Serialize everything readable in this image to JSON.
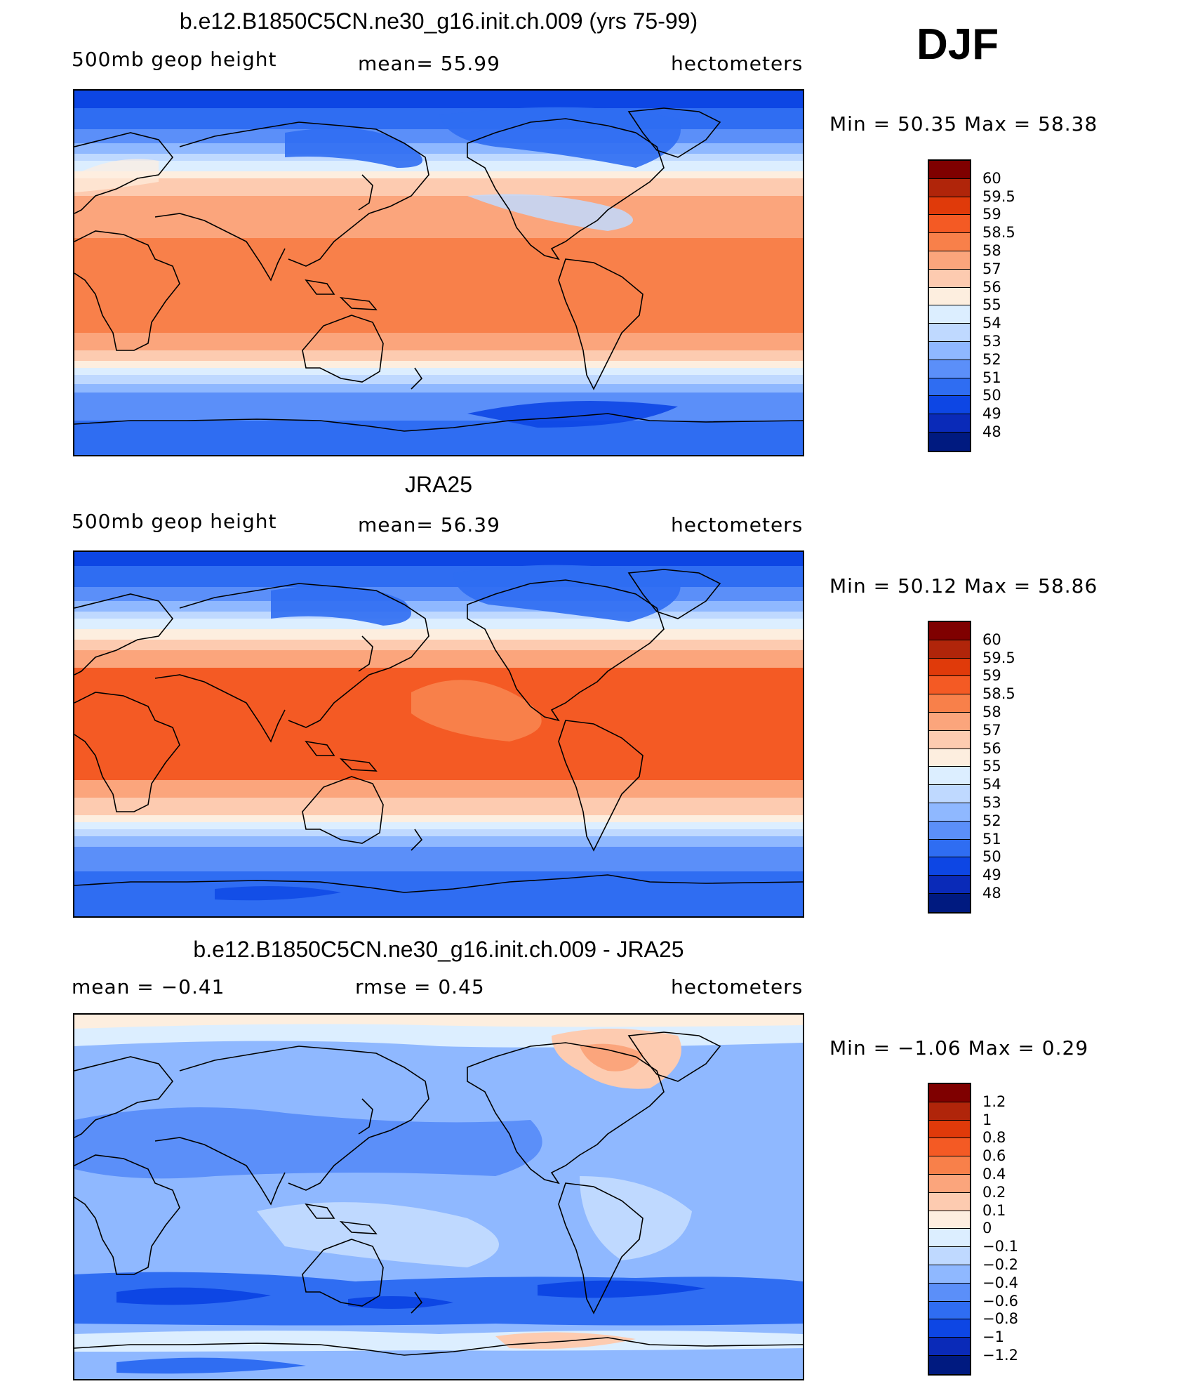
{
  "season": "DJF",
  "panels": [
    {
      "title": "b.e12.B1850C5CN.ne30_g16.init.ch.009 (yrs 75-99)",
      "left": "500mb geop height",
      "center": "mean=   55.99",
      "right": "hectometers",
      "minmax": "Min =   50.35 Max =   58.38",
      "kind": "model"
    },
    {
      "title": "JRA25",
      "left": "500mb geop height",
      "center": "mean=   56.39",
      "right": "hectometers",
      "minmax": "Min =   50.12 Max =   58.86",
      "kind": "obs"
    },
    {
      "title": "b.e12.B1850C5CN.ne30_g16.init.ch.009 - JRA25",
      "left": "mean =   −0.41",
      "center": "rmse =     0.45",
      "right": "hectometers",
      "minmax": "Min =   −1.06 Max =     0.29",
      "kind": "diff"
    }
  ],
  "colorbars": {
    "abs": {
      "labels": [
        "60",
        "59.5",
        "59",
        "58.5",
        "58",
        "57",
        "56",
        "55",
        "54",
        "53",
        "52",
        "51",
        "50",
        "49",
        "48"
      ],
      "colors": [
        "#7f0000",
        "#b0250a",
        "#e03a0a",
        "#f45a24",
        "#f8804a",
        "#fba57c",
        "#fdcbb0",
        "#fdeedf",
        "#dceeff",
        "#bfd9ff",
        "#8fb8ff",
        "#5b8ff9",
        "#2f6df2",
        "#0d46e4",
        "#0a2ab8",
        "#001a80"
      ]
    },
    "diff": {
      "labels": [
        "1.2",
        "1",
        "0.8",
        "0.6",
        "0.4",
        "0.2",
        "0.1",
        "0",
        "−0.1",
        "−0.2",
        "−0.4",
        "−0.6",
        "−0.8",
        "−1",
        "−1.2"
      ],
      "colors": [
        "#7f0000",
        "#b0250a",
        "#e03a0a",
        "#f45a24",
        "#f8804a",
        "#fba57c",
        "#fdcbb0",
        "#fdeedf",
        "#dceeff",
        "#bfd9ff",
        "#8fb8ff",
        "#5b8ff9",
        "#2f6df2",
        "#0d46e4",
        "#0a2ab8",
        "#001a80"
      ]
    }
  },
  "chart_data": [
    {
      "type": "heatmap",
      "title": "b.e12.B1850C5CN.ne30_g16.init.ch.009 (yrs 75-99)",
      "variable": "500mb geop height",
      "units": "hectometers",
      "mean": 55.99,
      "min": 50.35,
      "max": 58.38,
      "levels": [
        48,
        49,
        50,
        51,
        52,
        53,
        54,
        55,
        56,
        57,
        58,
        58.5,
        59,
        59.5,
        60
      ]
    },
    {
      "type": "heatmap",
      "title": "JRA25",
      "variable": "500mb geop height",
      "units": "hectometers",
      "mean": 56.39,
      "min": 50.12,
      "max": 58.86,
      "levels": [
        48,
        49,
        50,
        51,
        52,
        53,
        54,
        55,
        56,
        57,
        58,
        58.5,
        59,
        59.5,
        60
      ]
    },
    {
      "type": "heatmap",
      "title": "b.e12.B1850C5CN.ne30_g16.init.ch.009 - JRA25",
      "units": "hectometers",
      "mean": -0.41,
      "rmse": 0.45,
      "min": -1.06,
      "max": 0.29,
      "levels": [
        -1.2,
        -1,
        -0.8,
        -0.6,
        -0.4,
        -0.2,
        -0.1,
        0,
        0.1,
        0.2,
        0.4,
        0.6,
        0.8,
        1,
        1.2
      ]
    }
  ]
}
